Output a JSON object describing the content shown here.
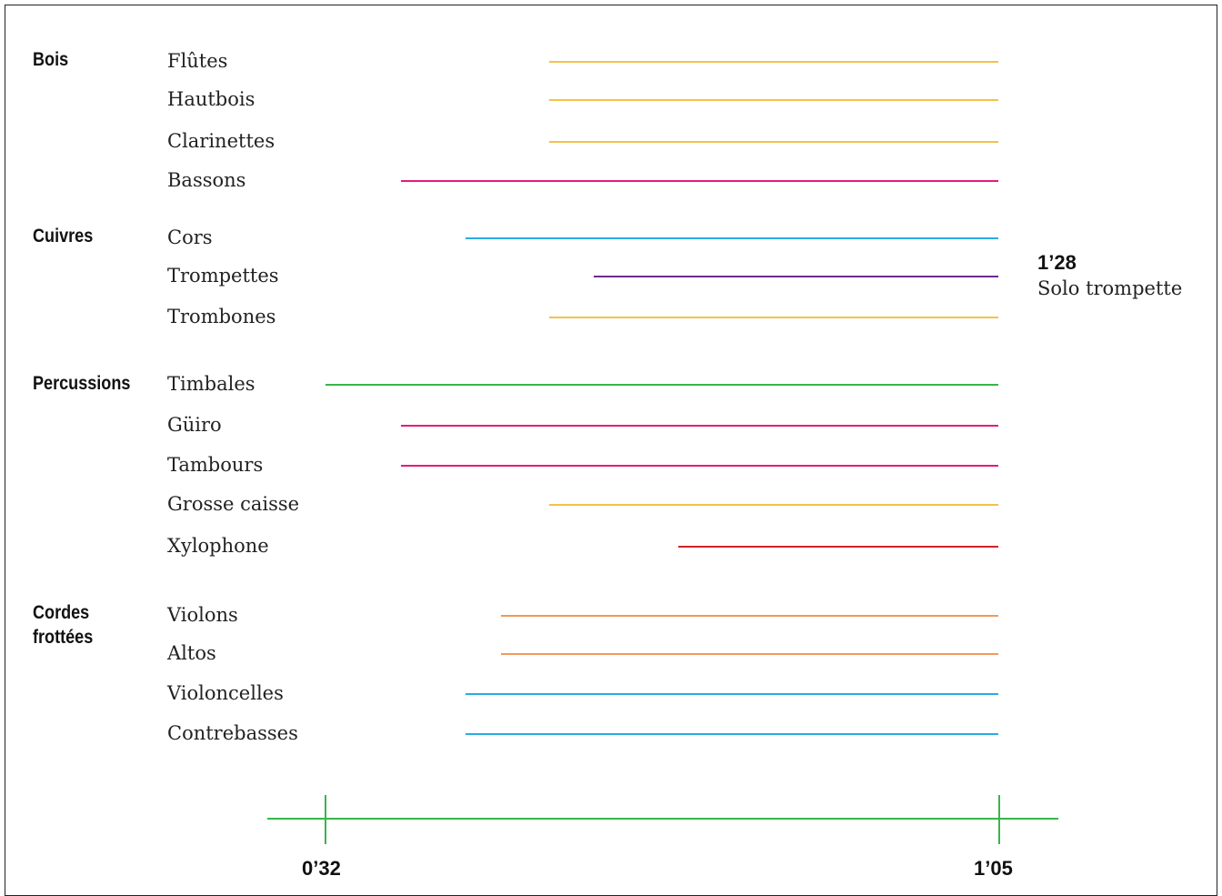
{
  "families": [
    {
      "key": "bois",
      "label": "Bois"
    },
    {
      "key": "cuivres",
      "label": "Cuivres"
    },
    {
      "key": "percussions",
      "label": "Percussions"
    },
    {
      "key": "cordes",
      "label": "Cordes\nfrottées"
    }
  ],
  "instruments": [
    {
      "family": "bois",
      "name": "Flûtes",
      "color": "#f2c24a"
    },
    {
      "family": "bois",
      "name": "Hautbois",
      "color": "#f2c24a"
    },
    {
      "family": "bois",
      "name": "Clarinettes",
      "color": "#f2c24a"
    },
    {
      "family": "bois",
      "name": "Bassons",
      "color": "#e6197f"
    },
    {
      "family": "cuivres",
      "name": "Cors",
      "color": "#29abe2"
    },
    {
      "family": "cuivres",
      "name": "Trompettes",
      "color": "#6b2c91"
    },
    {
      "family": "cuivres",
      "name": "Trombones",
      "color": "#f2c24a"
    },
    {
      "family": "percussions",
      "name": "Timbales",
      "color": "#39b54a"
    },
    {
      "family": "percussions",
      "name": "Güiro",
      "color": "#e6197f"
    },
    {
      "family": "percussions",
      "name": "Tambours",
      "color": "#e6197f"
    },
    {
      "family": "percussions",
      "name": "Grosse caisse",
      "color": "#f2c24a"
    },
    {
      "family": "percussions",
      "name": "Xylophone",
      "color": "#d2232a"
    },
    {
      "family": "cordes",
      "name": "Violons",
      "color": "#ef9a5b"
    },
    {
      "family": "cordes",
      "name": "Altos",
      "color": "#ef9a5b"
    },
    {
      "family": "cordes",
      "name": "Violoncelles",
      "color": "#29abe2"
    },
    {
      "family": "cordes",
      "name": "Contrebasses",
      "color": "#29abe2"
    }
  ],
  "timeline": {
    "ticks": [
      "0’32",
      "1’05"
    ],
    "axis_color": "#39b54a"
  },
  "note": {
    "time": "1’28",
    "text": "Solo trompette"
  }
}
